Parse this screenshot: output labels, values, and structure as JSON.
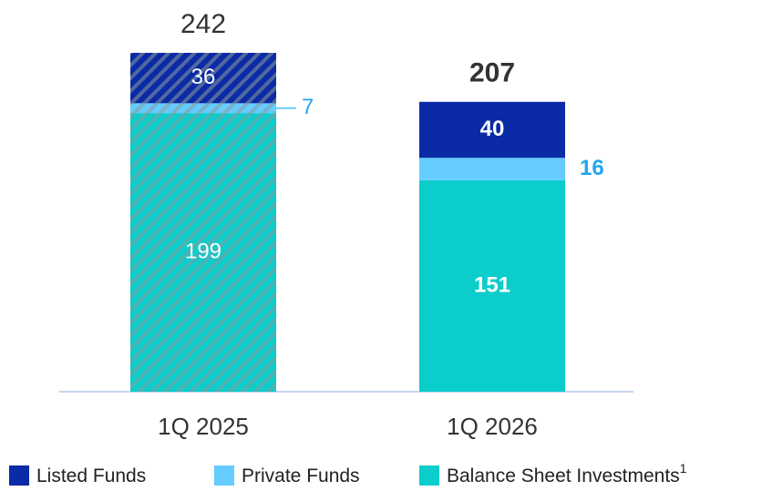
{
  "chart_data": {
    "type": "bar",
    "stacked": true,
    "categories": [
      "1Q 2025",
      "1Q 2026"
    ],
    "hatched": [
      true,
      false
    ],
    "totals": [
      242,
      207
    ],
    "series": [
      {
        "name": "Balance Sheet Investments",
        "footnote_mark": "1",
        "color": "#0bcdcc",
        "values": [
          199,
          151
        ]
      },
      {
        "name": "Private Funds",
        "color": "#66ccff",
        "values": [
          7,
          16
        ]
      },
      {
        "name": "Listed Funds",
        "color": "#0a2aa6",
        "values": [
          36,
          40
        ]
      }
    ],
    "legend_order": [
      2,
      1,
      0
    ]
  }
}
